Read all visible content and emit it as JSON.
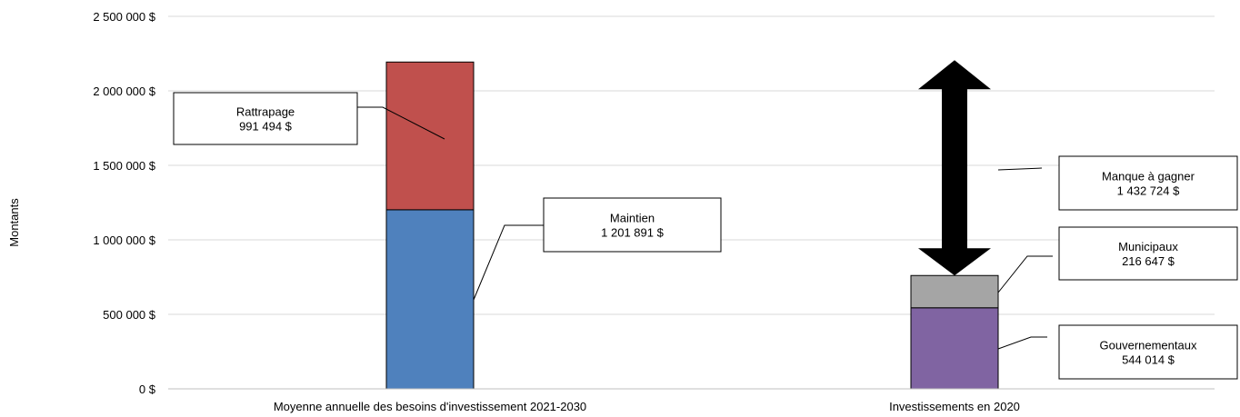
{
  "chart_data": {
    "type": "bar",
    "stacked": true,
    "ylabel": "Montants",
    "ylim": [
      0,
      2500000
    ],
    "yticks": [
      0,
      500000,
      1000000,
      1500000,
      2000000,
      2500000
    ],
    "ytick_labels": [
      "0 $",
      "500 000 $",
      "1 000 000 $",
      "1 500 000 $",
      "2 000 000 $",
      "2 500 000 $"
    ],
    "grid": true,
    "categories": [
      "Moyenne annuelle des besoins d'investissement 2021-2030",
      "Investissements en 2020"
    ],
    "series": [
      {
        "name": "Maintien",
        "values": [
          1201891,
          0
        ],
        "color": "#4f81bd",
        "label_value": "1 201 891 $"
      },
      {
        "name": "Rattrapage",
        "values": [
          991494,
          0
        ],
        "color": "#c0504d",
        "label_value": "991 494 $"
      },
      {
        "name": "Gouvernementaux",
        "values": [
          0,
          544014
        ],
        "color": "#8064a2",
        "label_value": "544 014 $"
      },
      {
        "name": "Municipaux",
        "values": [
          0,
          216647
        ],
        "color": "#a5a5a5",
        "label_value": "216 647 $"
      }
    ],
    "gap": {
      "name": "Manque à gagner",
      "value": 1432724,
      "label_value": "1 432 724 $",
      "from": 760661,
      "to": 2193385,
      "color": "#000000"
    }
  }
}
